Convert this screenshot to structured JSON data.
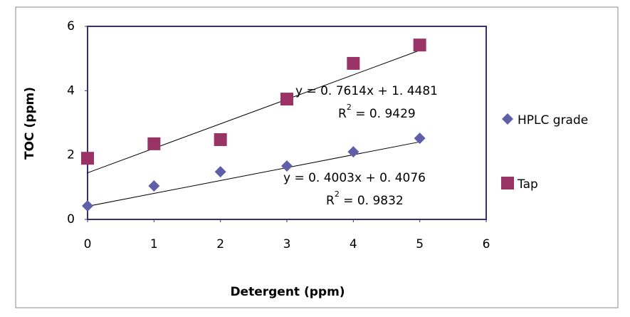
{
  "chart_data": {
    "type": "scatter",
    "xlabel": "Detergent (ppm)",
    "ylabel": "TOC (ppm)",
    "xlim": [
      0,
      6
    ],
    "ylim": [
      0,
      6
    ],
    "xticks": [
      0,
      1,
      2,
      3,
      4,
      5,
      6
    ],
    "yticks": [
      0,
      2,
      4,
      6
    ],
    "grid": false,
    "legend": "right",
    "series": [
      {
        "name": "HPLC grade",
        "color": "#5f5ea6",
        "marker": "diamond",
        "x": [
          0,
          1,
          2,
          3,
          4,
          5
        ],
        "values": [
          0.42,
          1.04,
          1.48,
          1.66,
          2.1,
          2.52
        ],
        "trendline": {
          "slope": 0.4003,
          "intercept": 0.4076,
          "equation": "y = 0. 4003x + 0. 4076",
          "r2": {
            "prefix": "R",
            "sup": "2",
            "text": " = 0. 9832"
          }
        }
      },
      {
        "name": "Tap",
        "color": "#993366",
        "marker": "square",
        "x": [
          0,
          1,
          2,
          3,
          4,
          5
        ],
        "values": [
          1.9,
          2.35,
          2.48,
          3.74,
          4.85,
          5.42
        ],
        "trendline": {
          "slope": 0.7614,
          "intercept": 1.4481,
          "equation": "y = 0. 7614x + 1. 4481",
          "r2": {
            "prefix": "R",
            "sup": "2",
            "text": " = 0. 9429"
          }
        }
      }
    ]
  }
}
